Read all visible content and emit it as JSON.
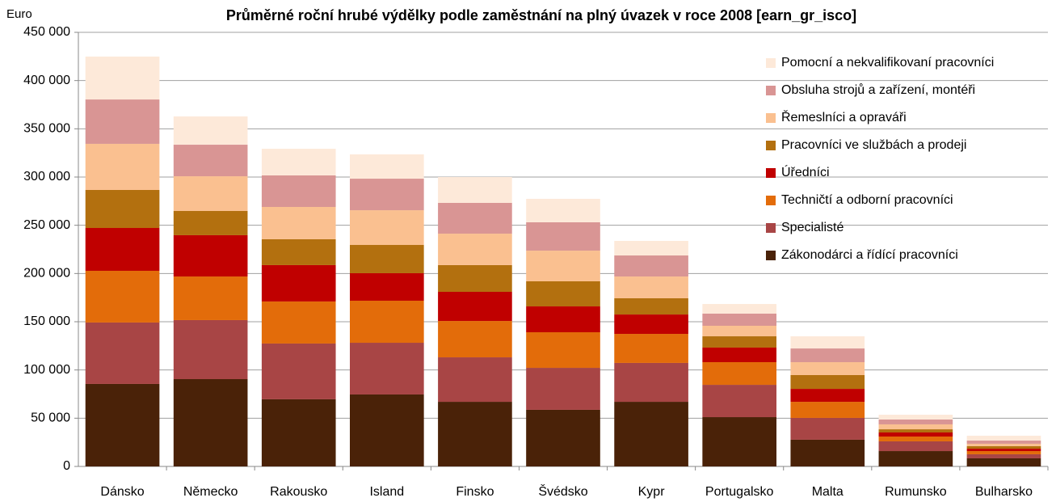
{
  "chart_data": {
    "type": "stacked_bar",
    "title": "Průměrné roční hrubé výdělky podle zaměstnání na plný úvazek v roce 2008 [earn_gr_isco]",
    "y_axis_label": "Euro",
    "categories": [
      "Dánsko",
      "Německo",
      "Rakousko",
      "Island",
      "Finsko",
      "Švédsko",
      "Kypr",
      "Portugalsko",
      "Malta",
      "Rumunsko",
      "Bulharsko"
    ],
    "series": [
      {
        "name": "Zákonodárci a řídící pracovníci",
        "color": "#4a2208",
        "values": [
          85500,
          90500,
          69600,
          74600,
          67000,
          58700,
          67000,
          51100,
          27700,
          15900,
          8400
        ]
      },
      {
        "name": "Specialisté",
        "color": "#a84545",
        "values": [
          63700,
          61200,
          57800,
          53600,
          46100,
          43500,
          40300,
          33500,
          22600,
          10100,
          4200
        ]
      },
      {
        "name": "Techničtí a odborní pracovníci",
        "color": "#e36c0a",
        "values": [
          53600,
          45200,
          43600,
          43600,
          37700,
          36900,
          30100,
          23500,
          16700,
          5000,
          3300
        ]
      },
      {
        "name": "Úředníci",
        "color": "#c00000",
        "values": [
          44400,
          42800,
          37700,
          28500,
          30200,
          26800,
          20100,
          15100,
          13400,
          4200,
          2500
        ]
      },
      {
        "name": "Pracovníci ve službách a prodeji",
        "color": "#b3700f",
        "values": [
          39400,
          25100,
          26800,
          29300,
          27700,
          26000,
          16800,
          11700,
          14300,
          3300,
          2600
        ]
      },
      {
        "name": "Řemeslníci a opraváři",
        "color": "#fac090",
        "values": [
          47800,
          36000,
          33500,
          36000,
          32600,
          31800,
          22600,
          10900,
          13400,
          5100,
          2500
        ]
      },
      {
        "name": "Obsluha strojů a zařízení,  montéři",
        "color": "#d99594",
        "values": [
          46000,
          32700,
          32700,
          32700,
          31900,
          29400,
          21800,
          12600,
          14200,
          5000,
          3300
        ]
      },
      {
        "name": "Pomocní a nekvalifikovaní pracovníci",
        "color": "#fde9d9",
        "values": [
          44500,
          29300,
          27600,
          25200,
          26800,
          24300,
          15100,
          10000,
          12600,
          5000,
          5000
        ]
      }
    ],
    "ylim": [
      0,
      450000
    ],
    "yticks": [
      0,
      {
        "value": 50000,
        "label": "50 000"
      },
      {
        "value": 100000,
        "label": "100 000"
      },
      {
        "value": 150000,
        "label": "150 000"
      },
      {
        "value": 200000,
        "label": "200 000"
      },
      {
        "value": 250000,
        "label": "250 000"
      },
      {
        "value": 300000,
        "label": "300 000"
      },
      {
        "value": 350000,
        "label": "350 000"
      },
      {
        "value": 400000,
        "label": "400 000"
      },
      {
        "value": 450000,
        "label": "450 000"
      }
    ],
    "grid": true,
    "legend": "upper right"
  }
}
